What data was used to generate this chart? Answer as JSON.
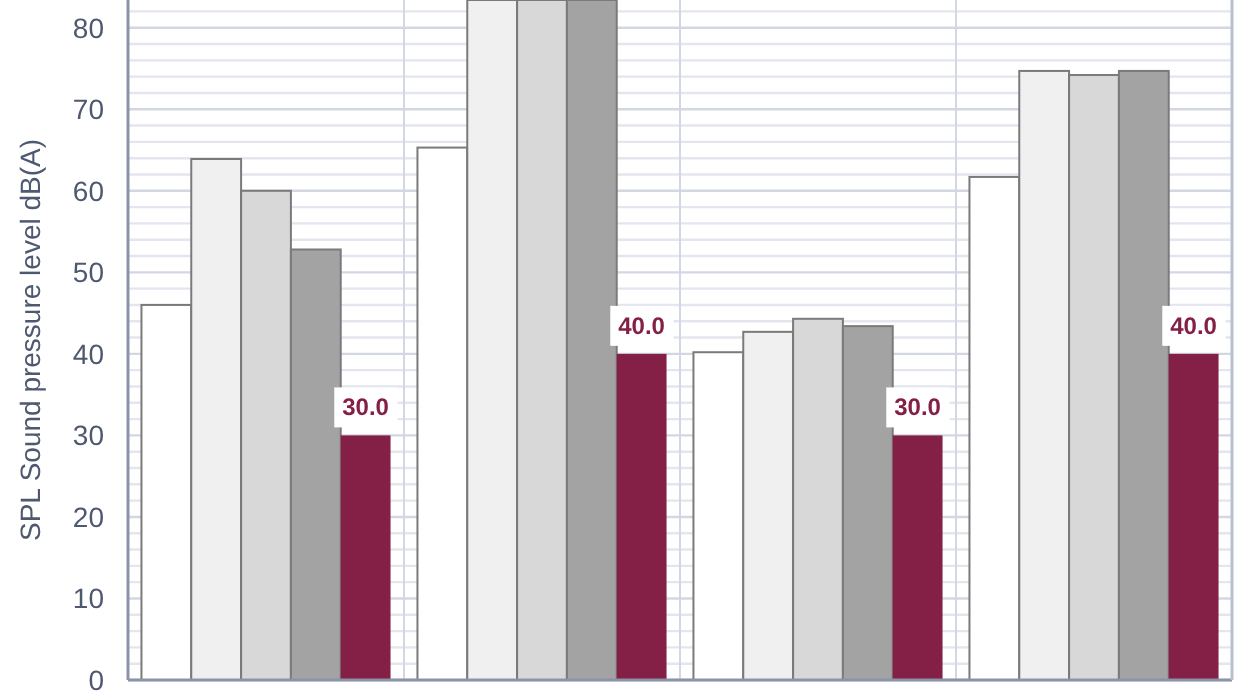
{
  "chart_data": {
    "type": "bar",
    "ylabel": "SPL Sound pressure level dB(A)",
    "categories": [
      null,
      null,
      null,
      null
    ],
    "series": [
      {
        "color": "#ffffff",
        "values": [
          46.0,
          65.3,
          40.2,
          61.7
        ]
      },
      {
        "color": "#f0f0f0",
        "values": [
          63.9,
          83.4,
          42.7,
          74.7
        ]
      },
      {
        "color": "#d8d8d8",
        "values": [
          60.0,
          83.4,
          44.3,
          74.2
        ]
      },
      {
        "color": "#a3a3a3",
        "values": [
          52.8,
          83.4,
          43.4,
          74.7
        ]
      },
      {
        "color": "#841f45",
        "values": [
          30.0,
          40.0,
          30.0,
          40.0
        ],
        "value_labels": [
          "30.0",
          "40.0",
          "30.0",
          "40.0"
        ]
      }
    ],
    "ylim": [
      0,
      83.4
    ],
    "yticks": [
      0,
      {
        "value": 2,
        "label": null
      },
      {
        "value": 4,
        "label": null
      },
      {
        "value": 6,
        "label": null
      },
      {
        "value": 8,
        "label": null
      },
      10,
      {
        "value": 12,
        "label": null
      },
      {
        "value": 14,
        "label": null
      },
      {
        "value": 16,
        "label": null
      },
      {
        "value": 18,
        "label": null
      },
      20,
      {
        "value": 22,
        "label": null
      },
      {
        "value": 24,
        "label": null
      },
      {
        "value": 26,
        "label": null
      },
      {
        "value": 28,
        "label": null
      },
      30,
      {
        "value": 32,
        "label": null
      },
      {
        "value": 34,
        "label": null
      },
      {
        "value": 36,
        "label": null
      },
      {
        "value": 38,
        "label": null
      },
      40,
      {
        "value": 42,
        "label": null
      },
      {
        "value": 44,
        "label": null
      },
      {
        "value": 46,
        "label": null
      },
      {
        "value": 48,
        "label": null
      },
      50,
      {
        "value": 52,
        "label": null
      },
      {
        "value": 54,
        "label": null
      },
      {
        "value": 56,
        "label": null
      },
      {
        "value": 58,
        "label": null
      },
      60,
      {
        "value": 62,
        "label": null
      },
      {
        "value": 64,
        "label": null
      },
      {
        "value": 66,
        "label": null
      },
      {
        "value": 68,
        "label": null
      },
      70,
      {
        "value": 72,
        "label": null
      },
      {
        "value": 74,
        "label": null
      },
      {
        "value": 76,
        "label": null
      },
      {
        "value": 78,
        "label": null
      },
      80,
      {
        "value": 82,
        "label": null
      }
    ],
    "grid": true,
    "tick_labels": "y"
  }
}
